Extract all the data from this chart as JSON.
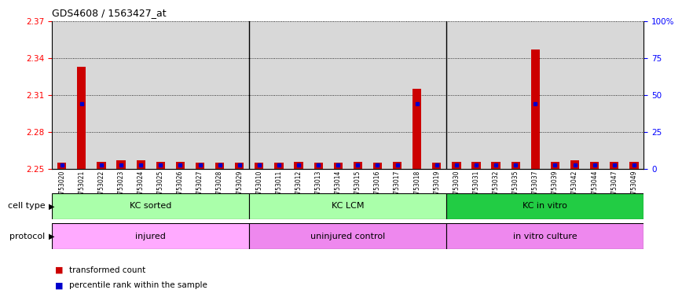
{
  "title": "GDS4608 / 1563427_at",
  "samples": [
    "GSM753020",
    "GSM753021",
    "GSM753022",
    "GSM753023",
    "GSM753024",
    "GSM753025",
    "GSM753026",
    "GSM753027",
    "GSM753028",
    "GSM753029",
    "GSM753010",
    "GSM753011",
    "GSM753012",
    "GSM753013",
    "GSM753014",
    "GSM753015",
    "GSM753016",
    "GSM753017",
    "GSM753018",
    "GSM753019",
    "GSM753030",
    "GSM753031",
    "GSM753032",
    "GSM753035",
    "GSM753037",
    "GSM753039",
    "GSM753042",
    "GSM753044",
    "GSM753047",
    "GSM753049"
  ],
  "transformed_count": [
    2.255,
    2.333,
    2.256,
    2.257,
    2.257,
    2.256,
    2.256,
    2.255,
    2.255,
    2.255,
    2.255,
    2.255,
    2.256,
    2.255,
    2.255,
    2.256,
    2.255,
    2.256,
    2.315,
    2.255,
    2.256,
    2.256,
    2.256,
    2.256,
    2.347,
    2.256,
    2.257,
    2.256,
    2.256,
    2.256
  ],
  "percentile_rank": [
    3,
    44,
    3,
    3,
    3,
    3,
    3,
    3,
    3,
    3,
    3,
    3,
    3,
    3,
    3,
    3,
    3,
    3,
    44,
    3,
    3,
    3,
    3,
    3,
    44,
    3,
    3,
    3,
    3,
    3
  ],
  "ylim_left": [
    2.25,
    2.37
  ],
  "ylim_right": [
    0,
    100
  ],
  "yticks_left": [
    2.25,
    2.28,
    2.31,
    2.34,
    2.37
  ],
  "yticks_right": [
    0,
    25,
    50,
    75,
    100
  ],
  "ytick_labels_right": [
    "0",
    "25",
    "50",
    "75",
    "100%"
  ],
  "cell_type_groups": [
    {
      "label": "KC sorted",
      "start": 0,
      "end": 10,
      "color": "#aaffaa"
    },
    {
      "label": "KC LCM",
      "start": 10,
      "end": 20,
      "color": "#aaffaa"
    },
    {
      "label": "KC in vitro",
      "start": 20,
      "end": 30,
      "color": "#22cc44"
    }
  ],
  "protocol_groups": [
    {
      "label": "injured",
      "start": 0,
      "end": 10,
      "color": "#ffaaff"
    },
    {
      "label": "uninjured control",
      "start": 10,
      "end": 20,
      "color": "#ee88ee"
    },
    {
      "label": "in vitro culture",
      "start": 20,
      "end": 30,
      "color": "#ee88ee"
    }
  ],
  "cell_type_label": "cell type",
  "protocol_label": "protocol",
  "bar_color": "#CC0000",
  "percentile_color": "#0000CC",
  "base_value": 2.25,
  "chart_bg": "#FFFFFF",
  "tick_area_color": "#D8D8D8",
  "group_boundary_color": "#000000",
  "legend_bar_label": "transformed count",
  "legend_pct_label": "percentile rank within the sample"
}
